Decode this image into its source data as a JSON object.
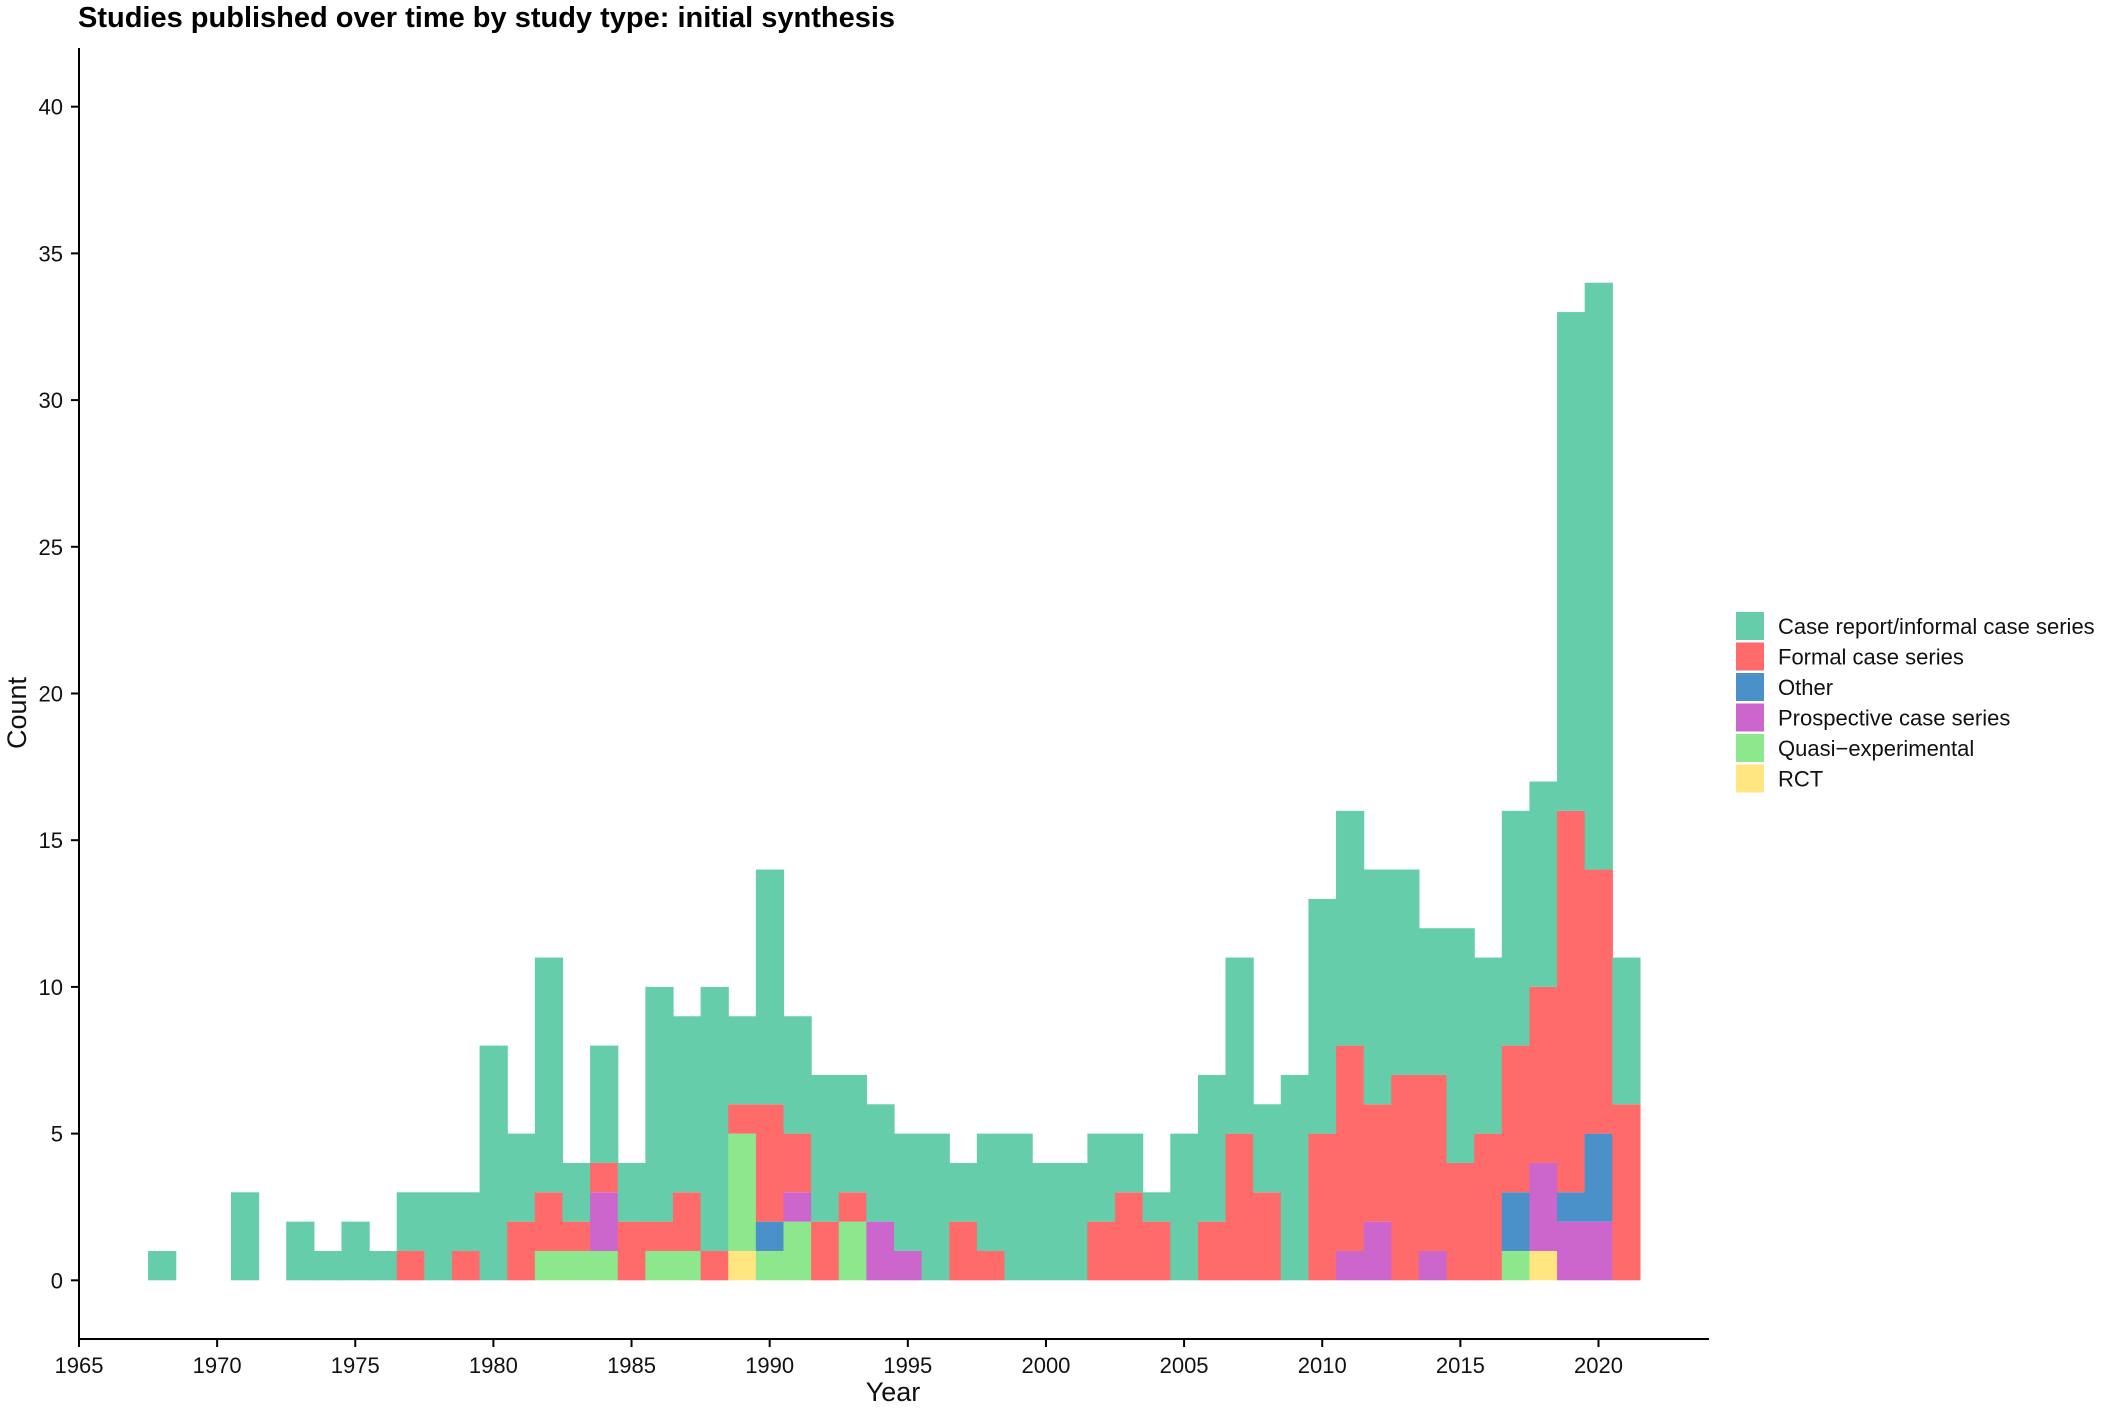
{
  "chart_data": {
    "type": "bar",
    "stacked": true,
    "title": "Studies published over time by study type: initial synthesis",
    "xlabel": "Year",
    "ylabel": "Count",
    "xlim": [
      1965,
      2024
    ],
    "ylim": [
      -2,
      42
    ],
    "x_ticks": [
      1965,
      1970,
      1975,
      1980,
      1985,
      1990,
      1995,
      2000,
      2005,
      2010,
      2015,
      2020
    ],
    "y_ticks": [
      0,
      5,
      10,
      15,
      20,
      25,
      30,
      35,
      40
    ],
    "grid": false,
    "legend_position": "right",
    "x": [
      1968,
      1969,
      1970,
      1971,
      1972,
      1973,
      1974,
      1975,
      1976,
      1977,
      1978,
      1979,
      1980,
      1981,
      1982,
      1983,
      1984,
      1985,
      1986,
      1987,
      1988,
      1989,
      1990,
      1991,
      1992,
      1993,
      1994,
      1995,
      1996,
      1997,
      1998,
      1999,
      2000,
      2001,
      2002,
      2003,
      2004,
      2005,
      2006,
      2007,
      2008,
      2009,
      2010,
      2011,
      2012,
      2013,
      2014,
      2015,
      2016,
      2017,
      2018,
      2019,
      2020,
      2021
    ],
    "series": [
      {
        "name": "RCT",
        "color": "#FFE680",
        "values": [
          0,
          0,
          0,
          0,
          0,
          0,
          0,
          0,
          0,
          0,
          0,
          0,
          0,
          0,
          0,
          0,
          0,
          0,
          0,
          0,
          0,
          1,
          0,
          0,
          0,
          0,
          0,
          0,
          0,
          0,
          0,
          0,
          0,
          0,
          0,
          0,
          0,
          0,
          0,
          0,
          0,
          0,
          0,
          0,
          0,
          0,
          0,
          0,
          0,
          0,
          1,
          0,
          0,
          0
        ]
      },
      {
        "name": "Quasi−experimental",
        "color": "#8DE88D",
        "values": [
          0,
          0,
          0,
          0,
          0,
          0,
          0,
          0,
          0,
          0,
          0,
          0,
          0,
          0,
          1,
          1,
          1,
          0,
          1,
          1,
          0,
          4,
          1,
          2,
          0,
          2,
          0,
          0,
          0,
          0,
          0,
          0,
          0,
          0,
          0,
          0,
          0,
          0,
          0,
          0,
          0,
          0,
          0,
          0,
          0,
          0,
          0,
          0,
          0,
          1,
          0,
          0,
          0,
          0
        ]
      },
      {
        "name": "Prospective case series",
        "color": "#CC66CC",
        "values": [
          0,
          0,
          0,
          0,
          0,
          0,
          0,
          0,
          0,
          0,
          0,
          0,
          0,
          0,
          0,
          0,
          2,
          0,
          0,
          0,
          0,
          0,
          0,
          1,
          0,
          0,
          2,
          1,
          0,
          0,
          0,
          0,
          0,
          0,
          0,
          0,
          0,
          0,
          0,
          0,
          0,
          0,
          0,
          1,
          2,
          0,
          1,
          0,
          0,
          0,
          3,
          2,
          2,
          0
        ]
      },
      {
        "name": "Other",
        "color": "#4A90C9",
        "values": [
          0,
          0,
          0,
          0,
          0,
          0,
          0,
          0,
          0,
          0,
          0,
          0,
          0,
          0,
          0,
          0,
          0,
          0,
          0,
          0,
          0,
          0,
          1,
          0,
          0,
          0,
          0,
          0,
          0,
          0,
          0,
          0,
          0,
          0,
          0,
          0,
          0,
          0,
          0,
          0,
          0,
          0,
          0,
          0,
          0,
          0,
          0,
          0,
          0,
          2,
          0,
          1,
          3,
          0
        ]
      },
      {
        "name": "Formal case series",
        "color": "#FF6B6B",
        "values": [
          0,
          0,
          0,
          0,
          0,
          0,
          0,
          0,
          0,
          1,
          0,
          1,
          0,
          2,
          2,
          1,
          1,
          2,
          1,
          2,
          1,
          1,
          4,
          2,
          2,
          1,
          0,
          0,
          0,
          2,
          1,
          0,
          0,
          0,
          2,
          3,
          2,
          0,
          2,
          5,
          3,
          0,
          5,
          7,
          4,
          7,
          6,
          4,
          5,
          5,
          6,
          13,
          9,
          6
        ]
      },
      {
        "name": "Case report/informal case series",
        "color": "#66CDAA",
        "values": [
          1,
          0,
          0,
          3,
          0,
          2,
          1,
          2,
          1,
          2,
          3,
          2,
          8,
          3,
          8,
          2,
          4,
          2,
          8,
          6,
          9,
          3,
          8,
          4,
          5,
          4,
          4,
          4,
          5,
          2,
          4,
          5,
          4,
          4,
          3,
          2,
          1,
          5,
          5,
          6,
          3,
          7,
          8,
          8,
          8,
          7,
          5,
          8,
          6,
          8,
          7,
          17,
          20,
          5
        ]
      }
    ],
    "legend_order": [
      "Case report/informal case series",
      "Formal case series",
      "Other",
      "Prospective case series",
      "Quasi−experimental",
      "RCT"
    ]
  }
}
